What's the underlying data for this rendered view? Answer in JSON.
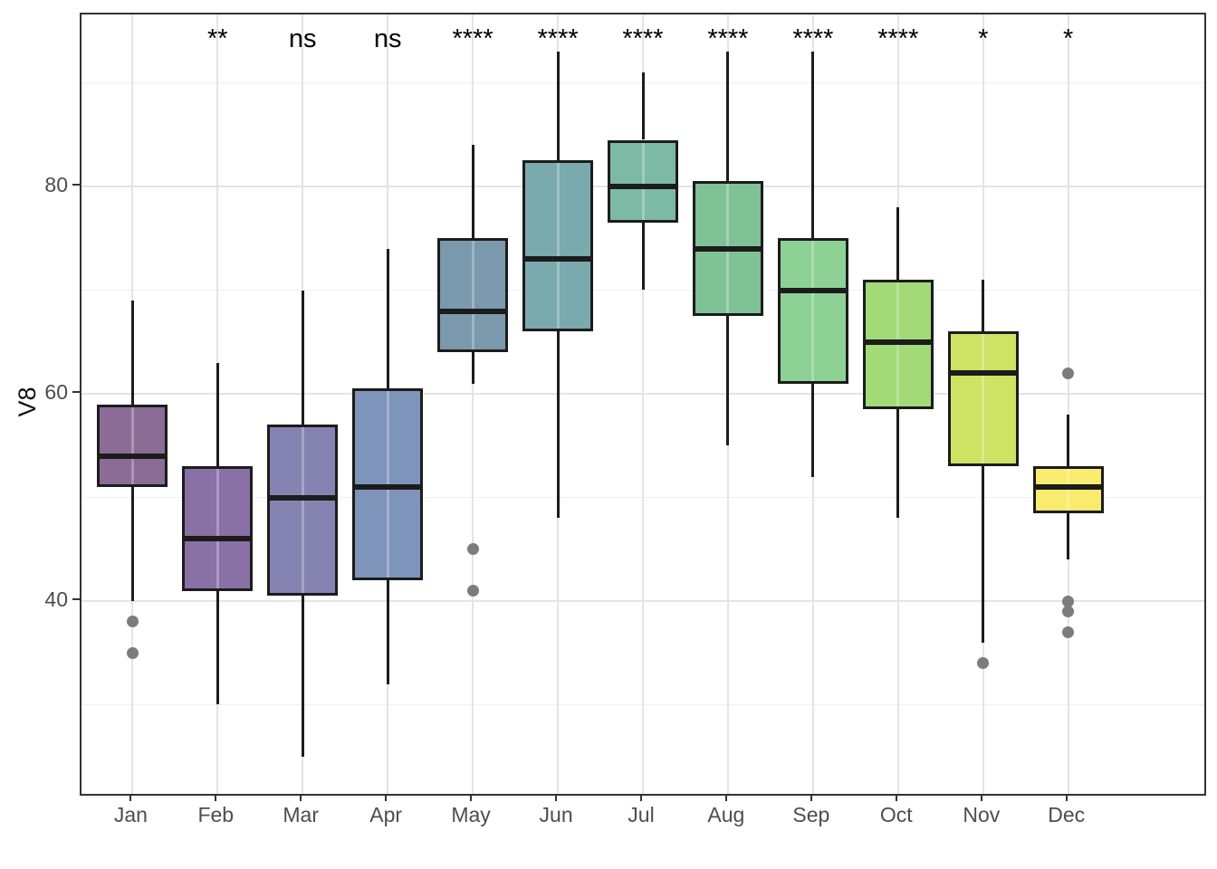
{
  "chart_data": {
    "type": "boxplot",
    "title": "",
    "xlabel": "",
    "ylabel": "V8",
    "ylim": [
      21.4,
      96.6
    ],
    "y_major_ticks": [
      80,
      60,
      40
    ],
    "y_minor_gridlines": [
      90,
      70,
      50,
      30
    ],
    "grid": "on",
    "legend": "none",
    "categories": [
      "Jan",
      "Feb",
      "Mar",
      "Apr",
      "May",
      "Jun",
      "Jul",
      "Aug",
      "Sep",
      "Oct",
      "Nov",
      "Dec"
    ],
    "boxes": [
      {
        "month": "Jan",
        "fill": "#8A6C96",
        "whisker_low": 40,
        "q1": 51,
        "median": 54,
        "q3": 59,
        "whisker_high": 69,
        "outliers": [
          38,
          35
        ],
        "significance": ""
      },
      {
        "month": "Feb",
        "fill": "#8971A6",
        "whisker_low": 30,
        "q1": 41,
        "median": 46,
        "q3": 53,
        "whisker_high": 63,
        "outliers": [],
        "significance": "**"
      },
      {
        "month": "Mar",
        "fill": "#8483B2",
        "whisker_low": 25,
        "q1": 40.5,
        "median": 50,
        "q3": 57,
        "whisker_high": 70,
        "outliers": [],
        "significance": "ns"
      },
      {
        "month": "Apr",
        "fill": "#7E94BA",
        "whisker_low": 32,
        "q1": 42,
        "median": 51,
        "q3": 60.5,
        "whisker_high": 74,
        "outliers": [],
        "significance": "ns"
      },
      {
        "month": "May",
        "fill": "#7A99AD",
        "whisker_low": 61,
        "q1": 64,
        "median": 68,
        "q3": 75,
        "whisker_high": 84,
        "outliers": [
          45,
          41
        ],
        "significance": "****"
      },
      {
        "month": "Jun",
        "fill": "#7AAAAD",
        "whisker_low": 48,
        "q1": 66,
        "median": 73,
        "q3": 82.5,
        "whisker_high": 93,
        "outliers": [],
        "significance": "****"
      },
      {
        "month": "Jul",
        "fill": "#7CBAA6",
        "whisker_low": 70,
        "q1": 76.5,
        "median": 80,
        "q3": 84.5,
        "whisker_high": 91,
        "outliers": [],
        "significance": "****"
      },
      {
        "month": "Aug",
        "fill": "#7EC295",
        "whisker_low": 55,
        "q1": 67.5,
        "median": 74,
        "q3": 80.5,
        "whisker_high": 93,
        "outliers": [],
        "significance": "****"
      },
      {
        "month": "Sep",
        "fill": "#8DD195",
        "whisker_low": 52,
        "q1": 61,
        "median": 70,
        "q3": 75,
        "whisker_high": 93,
        "outliers": [],
        "significance": "****"
      },
      {
        "month": "Oct",
        "fill": "#A2DA78",
        "whisker_low": 48,
        "q1": 58.5,
        "median": 65,
        "q3": 71,
        "whisker_high": 78,
        "outliers": [],
        "significance": "****"
      },
      {
        "month": "Nov",
        "fill": "#CEE364",
        "whisker_low": 36,
        "q1": 53,
        "median": 62,
        "q3": 66,
        "whisker_high": 71,
        "outliers": [
          34
        ],
        "significance": "*"
      },
      {
        "month": "Dec",
        "fill": "#F8EB6E",
        "whisker_low": 44,
        "q1": 48.5,
        "median": 51,
        "q3": 53,
        "whisker_high": 58,
        "outliers": [
          62,
          40,
          39,
          37
        ],
        "significance": "*"
      }
    ]
  },
  "colors": {
    "box_border": "#1c1c1c",
    "median_line": "#1c1c1c",
    "outlier_dot": "#7c7c7c",
    "panel_border": "#333333",
    "gridline_major": "#e4e4e4",
    "gridline_minor": "#efefef",
    "tick_label": "#4d4d4d",
    "axis_title": "#111111",
    "background": "#ffffff"
  }
}
